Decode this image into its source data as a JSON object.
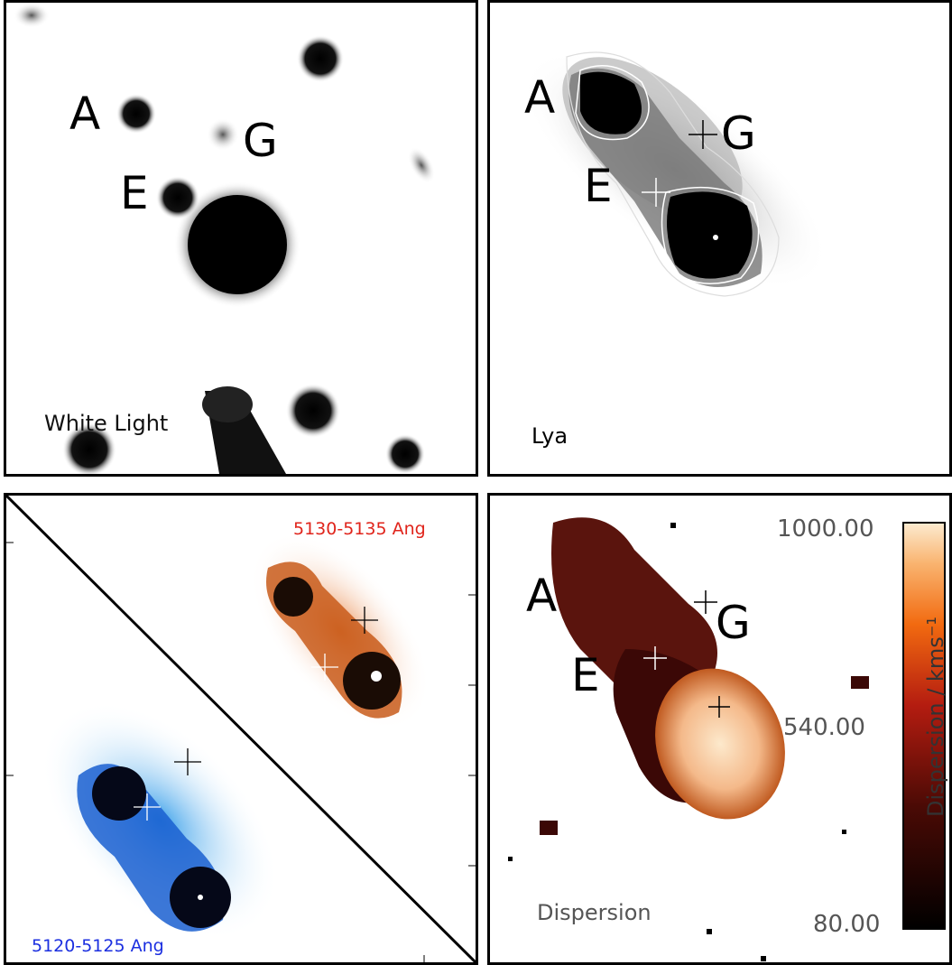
{
  "panels": {
    "white_light": {
      "caption": "White Light",
      "labels": {
        "a": "A",
        "g": "G",
        "e": "E"
      }
    },
    "lya": {
      "caption": "Lya",
      "labels": {
        "a": "A",
        "g": "G",
        "e": "E"
      }
    },
    "narrowband": {
      "red_caption": "5130-5135 Ang",
      "blue_caption": "5120-5125 Ang"
    },
    "dispersion": {
      "caption": "Dispersion",
      "labels": {
        "a": "A",
        "g": "G",
        "e": "E"
      },
      "colorbar": {
        "max": "1000.00",
        "mid": "540.00",
        "min": "80.00",
        "title": "Dispersion / kms⁻¹"
      }
    }
  },
  "colors": {
    "red_caption": "#e0241b",
    "blue_caption": "#1b2fe0",
    "frame": "#000000"
  }
}
